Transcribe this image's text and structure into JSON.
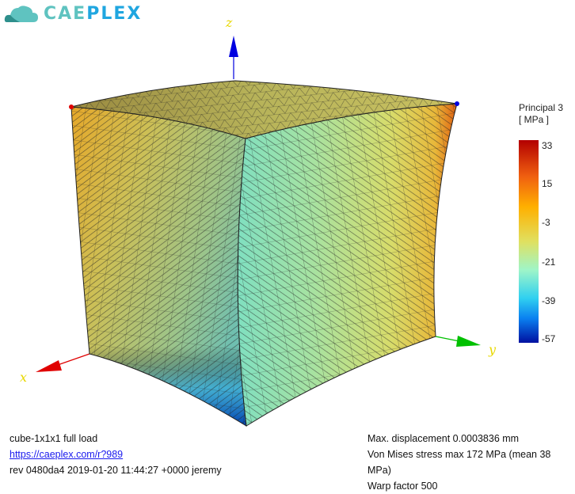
{
  "logo": {
    "text_part1": "CAE",
    "text_part2": "PLEX",
    "icon": "cloud-icon"
  },
  "axes": {
    "x": "x",
    "y": "y",
    "z": "z",
    "colors": {
      "x": "#e00000",
      "y": "#00c000",
      "z": "#0000e0"
    }
  },
  "legend": {
    "title": "Principal 3",
    "unit": "[ MPa ]",
    "ticks": [
      "33",
      "15",
      "-3",
      "-21",
      "-39",
      "-57"
    ],
    "min": -57,
    "max": 33
  },
  "info_left": {
    "case": "cube-1x1x1 full load",
    "link": "https://caeplex.com/r?989",
    "revision": "rev 0480da4 2019-01-20 11:44:27 +0000 jeremy"
  },
  "info_right": {
    "displacement": "Max. displacement 0.0003836 mm",
    "von_mises": "Von Mises stress max 172 MPa (mean 38 MPa)",
    "warp": "Warp factor 500"
  }
}
